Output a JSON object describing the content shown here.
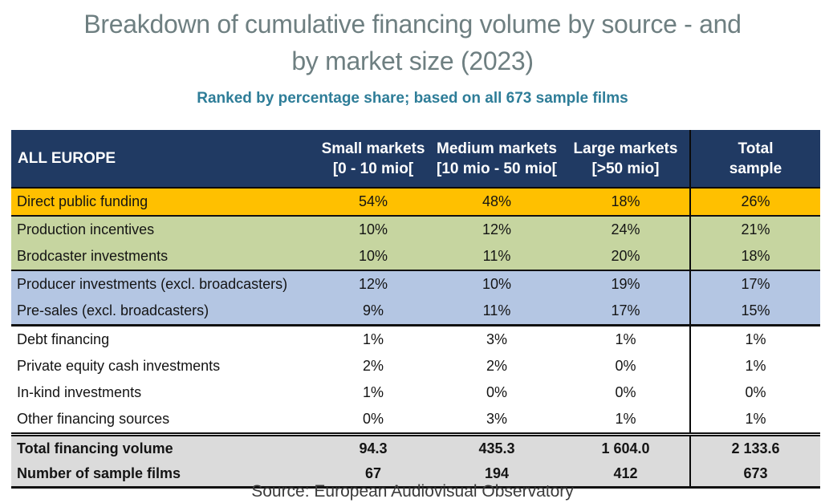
{
  "title": {
    "line1": "Breakdown of cumulative financing volume by source - and",
    "line2": "by market size (2023)"
  },
  "subtitle": "Ranked by percentage share; based on all 673 sample films",
  "source": "Source: European Audiovisual Observatory",
  "colors": {
    "header_navy": "#203a63",
    "row_yellow": "#ffc000",
    "row_green": "#c6d5a0",
    "row_blue": "#b4c6e3",
    "row_gray": "#dbdbdb",
    "title_text": "#6e7f81",
    "subtitle_text": "#2e7d98"
  },
  "table": {
    "corner_label": "ALL EUROPE",
    "columns": [
      {
        "line1": "Small markets",
        "line2": "[0 - 10 mio["
      },
      {
        "line1": "Medium markets",
        "line2": "[10 mio - 50 mio["
      },
      {
        "line1": "Large markets",
        "line2": "[>50 mio]"
      },
      {
        "line1": "Total",
        "line2": "sample"
      }
    ],
    "rows": [
      {
        "label": "Direct public funding",
        "values": [
          "54%",
          "48%",
          "18%",
          "26%"
        ],
        "group": "yellow"
      },
      {
        "label": "Production incentives",
        "values": [
          "10%",
          "12%",
          "24%",
          "21%"
        ],
        "group": "green"
      },
      {
        "label": "Brodcaster investments",
        "values": [
          "10%",
          "11%",
          "20%",
          "18%"
        ],
        "group": "green"
      },
      {
        "label": "Producer investments (excl. broadcasters)",
        "values": [
          "12%",
          "10%",
          "19%",
          "17%"
        ],
        "group": "blue"
      },
      {
        "label": "Pre-sales (excl. broadcasters)",
        "values": [
          "9%",
          "11%",
          "17%",
          "15%"
        ],
        "group": "blue"
      },
      {
        "label": "Debt financing",
        "values": [
          "1%",
          "3%",
          "1%",
          "1%"
        ],
        "group": "white"
      },
      {
        "label": "Private equity cash investments",
        "values": [
          "2%",
          "2%",
          "0%",
          "1%"
        ],
        "group": "white"
      },
      {
        "label": "In-kind investments",
        "values": [
          "1%",
          "0%",
          "0%",
          "0%"
        ],
        "group": "white"
      },
      {
        "label": "Other financing sources",
        "values": [
          "0%",
          "3%",
          "1%",
          "1%"
        ],
        "group": "white"
      },
      {
        "label": "Total financing volume",
        "values": [
          "94.3",
          "435.3",
          "1 604.0",
          "2 133.6"
        ],
        "group": "total"
      },
      {
        "label": "Number of sample films",
        "values": [
          "67",
          "194",
          "412",
          "673"
        ],
        "group": "total"
      }
    ]
  },
  "chart_data": {
    "type": "table",
    "title": "Breakdown of cumulative financing volume by source - and by market size (2023)",
    "subtitle": "Ranked by percentage share; based on all 673 sample films",
    "corner_label": "ALL EUROPE",
    "columns": [
      "Small markets [0 - 10 mio[",
      "Medium markets [10 mio - 50 mio[",
      "Large markets [>50 mio]",
      "Total sample"
    ],
    "percentage_rows": [
      {
        "label": "Direct public funding",
        "values_pct": [
          54,
          48,
          18,
          26
        ]
      },
      {
        "label": "Production incentives",
        "values_pct": [
          10,
          12,
          24,
          21
        ]
      },
      {
        "label": "Brodcaster investments",
        "values_pct": [
          10,
          11,
          20,
          18
        ]
      },
      {
        "label": "Producer investments (excl. broadcasters)",
        "values_pct": [
          12,
          10,
          19,
          17
        ]
      },
      {
        "label": "Pre-sales (excl. broadcasters)",
        "values_pct": [
          9,
          11,
          17,
          15
        ]
      },
      {
        "label": "Debt financing",
        "values_pct": [
          1,
          3,
          1,
          1
        ]
      },
      {
        "label": "Private equity cash investments",
        "values_pct": [
          2,
          2,
          0,
          1
        ]
      },
      {
        "label": "In-kind investments",
        "values_pct": [
          1,
          0,
          0,
          0
        ]
      },
      {
        "label": "Other financing sources",
        "values_pct": [
          0,
          3,
          1,
          1
        ]
      }
    ],
    "totals_rows": [
      {
        "label": "Total financing volume",
        "values": [
          94.3,
          435.3,
          1604.0,
          2133.6
        ]
      },
      {
        "label": "Number of sample films",
        "values": [
          67,
          194,
          412,
          673
        ]
      }
    ],
    "source": "Source: European Audiovisual Observatory"
  }
}
